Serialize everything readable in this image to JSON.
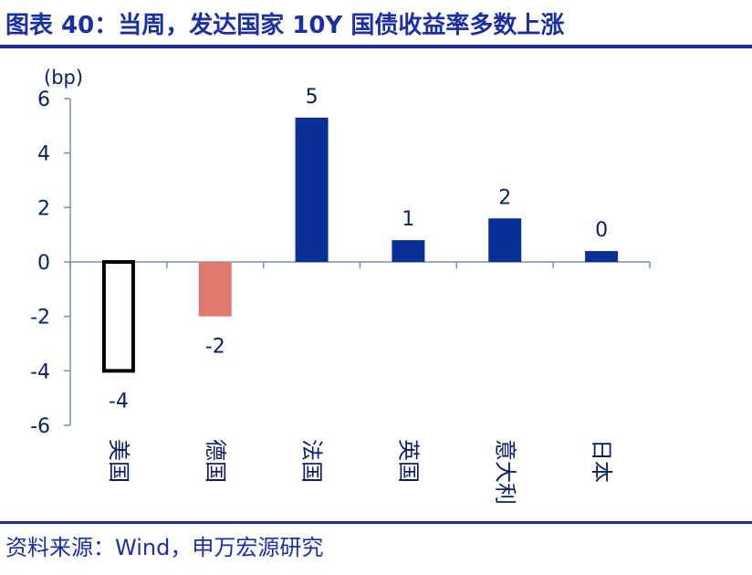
{
  "figure": {
    "title": "图表 40：当周，发达国家 10Y 国债收益率多数上涨",
    "source": "资料来源：Wind，申万宏源研究"
  },
  "colors": {
    "title": "#1b2fa0",
    "positive_bar": "#0a2f96",
    "negative_bar_fill": "#e07a70",
    "outlined_bar_stroke": "#000000",
    "axis": "#7a8fb3",
    "text": "#0b1f66"
  },
  "chart_data": {
    "type": "bar",
    "title": "",
    "unit": "(bp)",
    "xlabel": "",
    "ylabel": "",
    "ylim": [
      -6,
      6
    ],
    "yticks": [
      6,
      4,
      2,
      0,
      -2,
      -4,
      -6
    ],
    "categories": [
      "美国",
      "德国",
      "法国",
      "英国",
      "意大利",
      "日本"
    ],
    "values": [
      -4,
      -2,
      5.3,
      0.8,
      1.6,
      0.4
    ],
    "data_labels": [
      "-4",
      "-2",
      "5",
      "1",
      "2",
      "0"
    ],
    "bar_styles": [
      "outline",
      "salmon",
      "navy",
      "navy",
      "navy",
      "navy"
    ],
    "grid": false,
    "legend": "none"
  }
}
